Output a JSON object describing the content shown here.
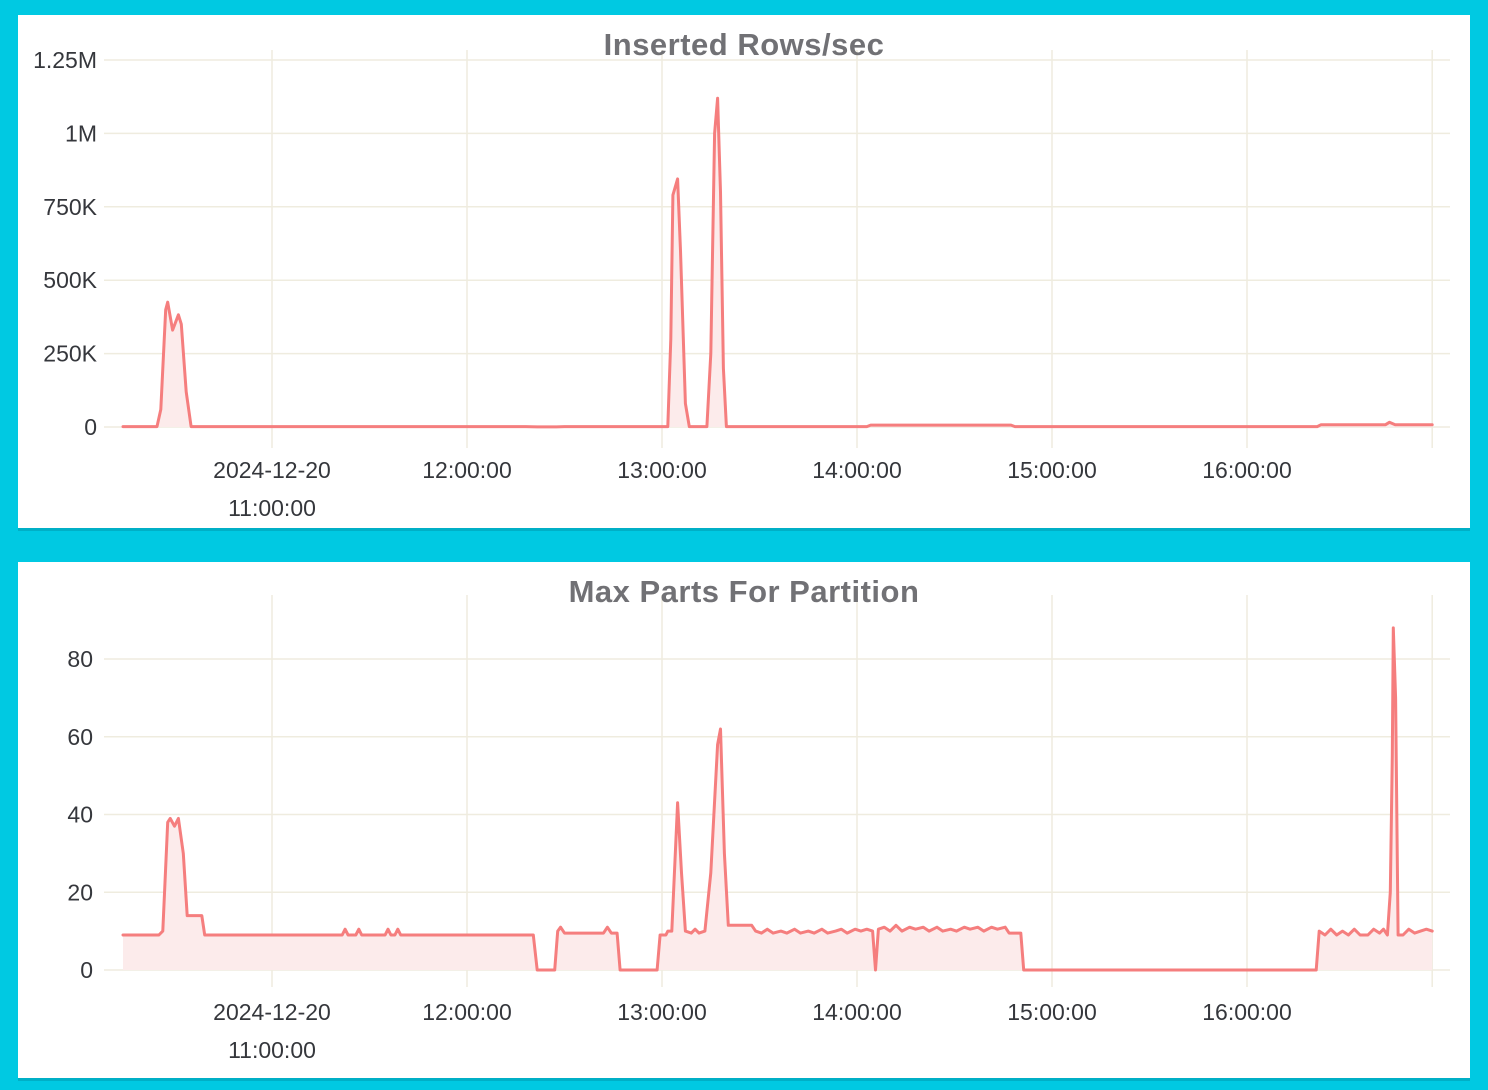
{
  "page": {
    "background_color": "#00C9E2",
    "panel_background": "#FFFFFF"
  },
  "colors": {
    "line": "#F57E7E",
    "fill": "#FCEBEB",
    "grid": "#EFECDF",
    "text": "#35373C",
    "title": "#717175"
  },
  "chart_data": [
    {
      "type": "area",
      "title": "Inserted Rows/sec",
      "series_name": "inserted-rows-per-sec",
      "x_unit": "time on 2024-12-20, decimal hours",
      "x_range": [
        10.236,
        16.95
      ],
      "y_range": [
        0,
        1250000
      ],
      "grid": true,
      "legend": false,
      "x_ticks": [
        {
          "t": 11,
          "line1": "2024-12-20",
          "line2": "11:00:00"
        },
        {
          "t": 12,
          "line1": "12:00:00"
        },
        {
          "t": 13,
          "line1": "13:00:00"
        },
        {
          "t": 14,
          "line1": "14:00:00"
        },
        {
          "t": 15,
          "line1": "15:00:00"
        },
        {
          "t": 16,
          "line1": "16:00:00"
        }
      ],
      "y_ticks": [
        {
          "v": 1250000,
          "label": "1.25M"
        },
        {
          "v": 1000000,
          "label": "1M"
        },
        {
          "v": 750000,
          "label": "750K"
        },
        {
          "v": 500000,
          "label": "500K"
        },
        {
          "v": 250000,
          "label": "250K"
        },
        {
          "v": 0,
          "label": "0"
        }
      ],
      "points": [
        [
          10.236,
          1500
        ],
        [
          10.41,
          1500
        ],
        [
          10.43,
          60000
        ],
        [
          10.455,
          400000
        ],
        [
          10.465,
          425000
        ],
        [
          10.49,
          330000
        ],
        [
          10.52,
          382000
        ],
        [
          10.535,
          350000
        ],
        [
          10.56,
          120000
        ],
        [
          10.585,
          1500
        ],
        [
          12.3,
          1500
        ],
        [
          12.36,
          500
        ],
        [
          12.46,
          500
        ],
        [
          12.5,
          1500
        ],
        [
          13.03,
          1500
        ],
        [
          13.045,
          300000
        ],
        [
          13.056,
          790000
        ],
        [
          13.08,
          845000
        ],
        [
          13.095,
          600000
        ],
        [
          13.12,
          80000
        ],
        [
          13.14,
          1500
        ],
        [
          13.23,
          1500
        ],
        [
          13.25,
          250000
        ],
        [
          13.27,
          1000000
        ],
        [
          13.285,
          1120000
        ],
        [
          13.3,
          800000
        ],
        [
          13.315,
          200000
        ],
        [
          13.33,
          1500
        ],
        [
          14.05,
          1500
        ],
        [
          14.07,
          6500
        ],
        [
          14.79,
          6500
        ],
        [
          14.81,
          1500
        ],
        [
          16.36,
          1500
        ],
        [
          16.38,
          8000
        ],
        [
          16.71,
          8000
        ],
        [
          16.73,
          16000
        ],
        [
          16.76,
          8000
        ],
        [
          16.95,
          8000
        ]
      ]
    },
    {
      "type": "area",
      "title": "Max Parts For Partition",
      "series_name": "max-parts-for-partition",
      "x_unit": "time on 2024-12-20, decimal hours",
      "x_range": [
        10.236,
        16.95
      ],
      "y_range": [
        0,
        80
      ],
      "grid": true,
      "legend": false,
      "x_ticks": [
        {
          "t": 11,
          "line1": "2024-12-20",
          "line2": "11:00:00"
        },
        {
          "t": 12,
          "line1": "12:00:00"
        },
        {
          "t": 13,
          "line1": "13:00:00"
        },
        {
          "t": 14,
          "line1": "14:00:00"
        },
        {
          "t": 15,
          "line1": "15:00:00"
        },
        {
          "t": 16,
          "line1": "16:00:00"
        }
      ],
      "y_ticks": [
        {
          "v": 80,
          "label": "80"
        },
        {
          "v": 60,
          "label": "60"
        },
        {
          "v": 40,
          "label": "40"
        },
        {
          "v": 20,
          "label": "20"
        },
        {
          "v": 0,
          "label": "0"
        }
      ],
      "points": [
        [
          10.236,
          9
        ],
        [
          10.42,
          9
        ],
        [
          10.44,
          10
        ],
        [
          10.465,
          38
        ],
        [
          10.478,
          39
        ],
        [
          10.5,
          37
        ],
        [
          10.52,
          39
        ],
        [
          10.545,
          30
        ],
        [
          10.565,
          14
        ],
        [
          10.64,
          14
        ],
        [
          10.655,
          9
        ],
        [
          11.36,
          9
        ],
        [
          11.375,
          10.5
        ],
        [
          11.39,
          9
        ],
        [
          11.43,
          9
        ],
        [
          11.445,
          10.5
        ],
        [
          11.46,
          9
        ],
        [
          11.58,
          9
        ],
        [
          11.595,
          10.5
        ],
        [
          11.61,
          9
        ],
        [
          11.63,
          9
        ],
        [
          11.645,
          10.5
        ],
        [
          11.66,
          9
        ],
        [
          12.34,
          9
        ],
        [
          12.36,
          0
        ],
        [
          12.45,
          0
        ],
        [
          12.465,
          10
        ],
        [
          12.48,
          11
        ],
        [
          12.5,
          9.5
        ],
        [
          12.7,
          9.5
        ],
        [
          12.72,
          11
        ],
        [
          12.74,
          9.5
        ],
        [
          12.77,
          9.5
        ],
        [
          12.785,
          0
        ],
        [
          12.975,
          0
        ],
        [
          12.99,
          9
        ],
        [
          13.02,
          9
        ],
        [
          13.03,
          10
        ],
        [
          13.05,
          10
        ],
        [
          13.08,
          43
        ],
        [
          13.1,
          25
        ],
        [
          13.12,
          10
        ],
        [
          13.15,
          9.5
        ],
        [
          13.17,
          10.5
        ],
        [
          13.19,
          9.5
        ],
        [
          13.22,
          10
        ],
        [
          13.25,
          25
        ],
        [
          13.285,
          58
        ],
        [
          13.3,
          62
        ],
        [
          13.32,
          30
        ],
        [
          13.34,
          11.5
        ],
        [
          13.46,
          11.5
        ],
        [
          13.48,
          10
        ],
        [
          13.51,
          9.5
        ],
        [
          13.54,
          10.5
        ],
        [
          13.57,
          9.5
        ],
        [
          13.61,
          10
        ],
        [
          13.64,
          9.5
        ],
        [
          13.68,
          10.5
        ],
        [
          13.71,
          9.5
        ],
        [
          13.75,
          10
        ],
        [
          13.78,
          9.5
        ],
        [
          13.82,
          10.5
        ],
        [
          13.85,
          9.5
        ],
        [
          13.89,
          10
        ],
        [
          13.92,
          10.5
        ],
        [
          13.95,
          9.5
        ],
        [
          13.99,
          10.5
        ],
        [
          14.02,
          10
        ],
        [
          14.05,
          10.5
        ],
        [
          14.08,
          10
        ],
        [
          14.095,
          0
        ],
        [
          14.11,
          10.5
        ],
        [
          14.14,
          11
        ],
        [
          14.17,
          10
        ],
        [
          14.2,
          11.5
        ],
        [
          14.23,
          10
        ],
        [
          14.27,
          11
        ],
        [
          14.3,
          10.5
        ],
        [
          14.34,
          11
        ],
        [
          14.37,
          10
        ],
        [
          14.41,
          11
        ],
        [
          14.44,
          10
        ],
        [
          14.48,
          10.5
        ],
        [
          14.51,
          10
        ],
        [
          14.55,
          11
        ],
        [
          14.58,
          10.5
        ],
        [
          14.62,
          11
        ],
        [
          14.65,
          10
        ],
        [
          14.69,
          11
        ],
        [
          14.72,
          10.5
        ],
        [
          14.76,
          11
        ],
        [
          14.78,
          9.5
        ],
        [
          14.84,
          9.5
        ],
        [
          14.855,
          0
        ],
        [
          16.355,
          0
        ],
        [
          16.37,
          10
        ],
        [
          16.4,
          9
        ],
        [
          16.43,
          10.5
        ],
        [
          16.46,
          9
        ],
        [
          16.49,
          10
        ],
        [
          16.52,
          9
        ],
        [
          16.55,
          10.5
        ],
        [
          16.58,
          9
        ],
        [
          16.62,
          9
        ],
        [
          16.65,
          10.5
        ],
        [
          16.68,
          9.5
        ],
        [
          16.7,
          10.5
        ],
        [
          16.72,
          9
        ],
        [
          16.735,
          20
        ],
        [
          16.745,
          55
        ],
        [
          16.75,
          88
        ],
        [
          16.762,
          70
        ],
        [
          16.775,
          9
        ],
        [
          16.8,
          9
        ],
        [
          16.83,
          10.5
        ],
        [
          16.86,
          9.5
        ],
        [
          16.89,
          10
        ],
        [
          16.92,
          10.5
        ],
        [
          16.95,
          10
        ]
      ]
    }
  ]
}
